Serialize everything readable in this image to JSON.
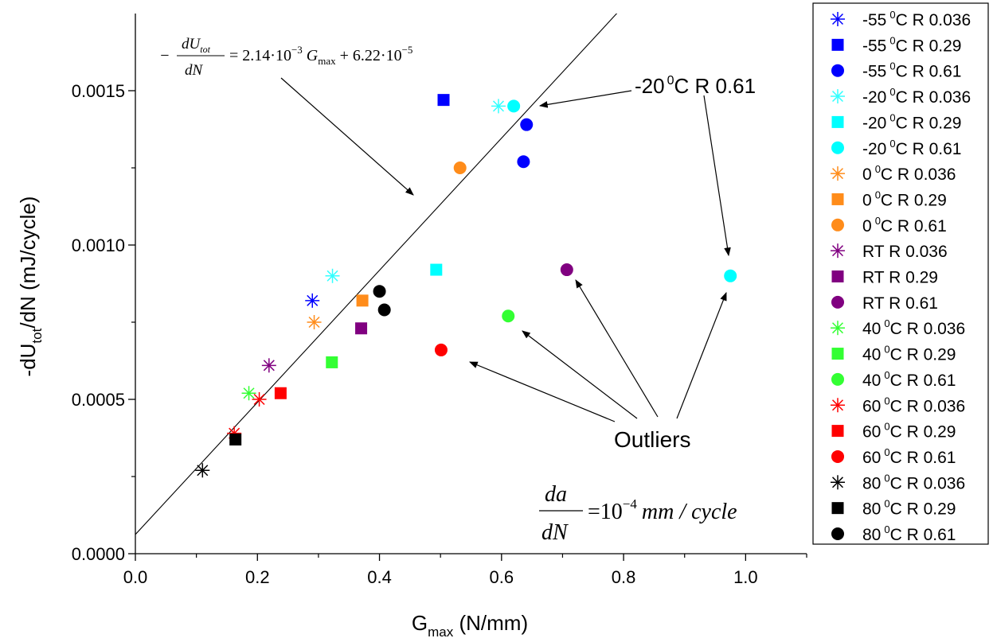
{
  "chart_data": {
    "type": "scatter",
    "xlabel": {
      "main": "G",
      "sub": "max",
      "rest": " (N/mm)"
    },
    "ylabel": {
      "main": "-dU",
      "sub": "tot",
      "rest": "/dN (mJ/cycle)"
    },
    "xlim": [
      0.0,
      1.1
    ],
    "ylim": [
      0.0,
      0.00175
    ],
    "x_ticks": [
      0.0,
      0.2,
      0.4,
      0.6,
      0.8,
      1.0
    ],
    "x_tick_labels": [
      "0.0",
      "0.2",
      "0.4",
      "0.6",
      "0.8",
      "1.0"
    ],
    "y_ticks": [
      0.0,
      0.0005,
      0.001,
      0.0015
    ],
    "y_tick_labels": [
      "0.0000",
      "0.0005",
      "0.0010",
      "0.0015"
    ],
    "grid": false,
    "legend_position": "right outside",
    "fit_line": {
      "slope": 0.00214,
      "intercept": 6.22e-05
    },
    "series": [
      {
        "temp": "-55",
        "unit": "0",
        "rest": "C R 0.036",
        "color": "#0000ff",
        "marker": "asterisk",
        "points": [
          [
            0.29,
            0.00082
          ]
        ]
      },
      {
        "temp": "-55",
        "unit": "0",
        "rest": "C R 0.29",
        "color": "#0000ff",
        "marker": "square",
        "points": [
          [
            0.505,
            0.00147
          ]
        ]
      },
      {
        "temp": "-55",
        "unit": "0",
        "rest": "C R 0.61",
        "color": "#0000ff",
        "marker": "circle",
        "points": [
          [
            0.641,
            0.00139
          ],
          [
            0.636,
            0.00127
          ]
        ]
      },
      {
        "temp": "-20",
        "unit": "0",
        "rest": "C R 0.036",
        "color": "#33ffff",
        "marker": "asterisk",
        "points": [
          [
            0.595,
            0.00145
          ],
          [
            0.323,
            0.0009
          ]
        ]
      },
      {
        "temp": "-20",
        "unit": "0",
        "rest": "C R 0.29",
        "color": "#00ffff",
        "marker": "square",
        "points": [
          [
            0.493,
            0.00092
          ]
        ]
      },
      {
        "temp": "-20",
        "unit": "0",
        "rest": "C R 0.61",
        "color": "#00ffff",
        "marker": "circle",
        "points": [
          [
            0.62,
            0.00145
          ],
          [
            0.975,
            0.0009
          ]
        ]
      },
      {
        "temp": "0",
        "unit": "0",
        "rest": "C R 0.036",
        "color": "#ff8c1a",
        "marker": "asterisk",
        "points": [
          [
            0.293,
            0.00075
          ]
        ]
      },
      {
        "temp": "0",
        "unit": "0",
        "rest": "C R 0.29",
        "color": "#ff8c1a",
        "marker": "square",
        "points": [
          [
            0.372,
            0.00082
          ]
        ]
      },
      {
        "temp": "0",
        "unit": "0",
        "rest": "C R 0.61",
        "color": "#ff8c1a",
        "marker": "circle",
        "points": [
          [
            0.532,
            0.00125
          ]
        ]
      },
      {
        "temp": "RT",
        "unit": "",
        "rest": " R 0.036",
        "color": "#800080",
        "marker": "asterisk",
        "points": [
          [
            0.219,
            0.00061
          ]
        ]
      },
      {
        "temp": "RT",
        "unit": "",
        "rest": " R 0.29",
        "color": "#800080",
        "marker": "square",
        "points": [
          [
            0.37,
            0.00073
          ]
        ]
      },
      {
        "temp": "RT",
        "unit": "",
        "rest": " R 0.61",
        "color": "#800080",
        "marker": "circle",
        "points": [
          [
            0.707,
            0.00092
          ]
        ]
      },
      {
        "temp": "40",
        "unit": "0",
        "rest": "C R 0.036",
        "color": "#33ff33",
        "marker": "asterisk",
        "points": [
          [
            0.186,
            0.00052
          ]
        ]
      },
      {
        "temp": "40",
        "unit": "0",
        "rest": "C R 0.29",
        "color": "#33ff33",
        "marker": "square",
        "points": [
          [
            0.322,
            0.00062
          ]
        ]
      },
      {
        "temp": "40",
        "unit": "0",
        "rest": "C R 0.61",
        "color": "#33ff33",
        "marker": "circle",
        "points": [
          [
            0.611,
            0.00077
          ]
        ]
      },
      {
        "temp": "60",
        "unit": "0",
        "rest": "C R 0.036",
        "color": "#ff0000",
        "marker": "asterisk",
        "points": [
          [
            0.203,
            0.0005
          ],
          [
            0.162,
            0.00039
          ]
        ]
      },
      {
        "temp": "60",
        "unit": "0",
        "rest": "C R 0.29",
        "color": "#ff0000",
        "marker": "square",
        "points": [
          [
            0.238,
            0.00052
          ]
        ]
      },
      {
        "temp": "60",
        "unit": "0",
        "rest": "C R 0.61",
        "color": "#ff0000",
        "marker": "circle",
        "points": [
          [
            0.501,
            0.00066
          ]
        ]
      },
      {
        "temp": "80",
        "unit": "0",
        "rest": "C R 0.036",
        "color": "#000000",
        "marker": "asterisk",
        "points": [
          [
            0.11,
            0.00027
          ]
        ]
      },
      {
        "temp": "80",
        "unit": "0",
        "rest": "C R 0.29",
        "color": "#000000",
        "marker": "square",
        "points": [
          [
            0.164,
            0.00037
          ]
        ]
      },
      {
        "temp": "80",
        "unit": "0",
        "rest": "C R 0.61",
        "color": "#000000",
        "marker": "circle",
        "points": [
          [
            0.4,
            0.00085
          ],
          [
            0.408,
            0.00079
          ]
        ]
      }
    ],
    "annotations": {
      "callout": {
        "temp": "-20",
        "unit": "0",
        "rest": "C R 0.61"
      },
      "outliers": "Outliers",
      "equation": {
        "minus": "−",
        "num_d": "d",
        "num_U": "U",
        "num_sub": "tot",
        "den": "dN",
        "rhs_a": "= 2.14·10",
        "exp_a": "−3",
        "rhs_G": "G",
        "G_sub": "max",
        "rhs_b": "+ 6.22·10",
        "exp_b": "−5"
      },
      "rate": {
        "num": "da",
        "den": "dN",
        "rhs_a": "=10",
        "exp": "−4",
        "rhs_b": "mm / cycle"
      }
    }
  }
}
